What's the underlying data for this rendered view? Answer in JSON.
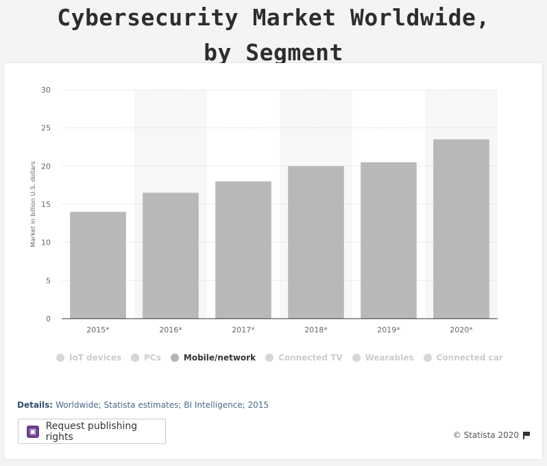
{
  "page": {
    "title_line1": "Cybersecurity Market Worldwide,",
    "title_line2": "by Segment"
  },
  "chart_data": {
    "type": "bar",
    "categories": [
      "2015*",
      "2016*",
      "2017*",
      "2018*",
      "2019*",
      "2020*"
    ],
    "values": [
      14,
      16.5,
      18,
      20,
      20.5,
      23.5
    ],
    "ylabel": "Market in billion U.S. dollars",
    "ylim": [
      0,
      30
    ],
    "yticks": [
      0,
      5,
      10,
      15,
      20,
      25,
      30
    ],
    "grid": true,
    "bar_color": "#b8b8b8",
    "legend_position": "bottom"
  },
  "legend": {
    "items": [
      {
        "label": "IoT devices",
        "active": false
      },
      {
        "label": "PCs",
        "active": false
      },
      {
        "label": "Mobile/network",
        "active": true
      },
      {
        "label": "Connected TV",
        "active": false
      },
      {
        "label": "Wearables",
        "active": false
      },
      {
        "label": "Connected car",
        "active": false
      }
    ]
  },
  "details": {
    "label": "Details:",
    "text": "Worldwide; Statista estimates; BI Intelligence; 2015"
  },
  "publish_button": {
    "label": "Request publishing rights",
    "icon": "publish-icon"
  },
  "copyright": {
    "text": "© Statista 2020",
    "icon": "flag-icon"
  }
}
